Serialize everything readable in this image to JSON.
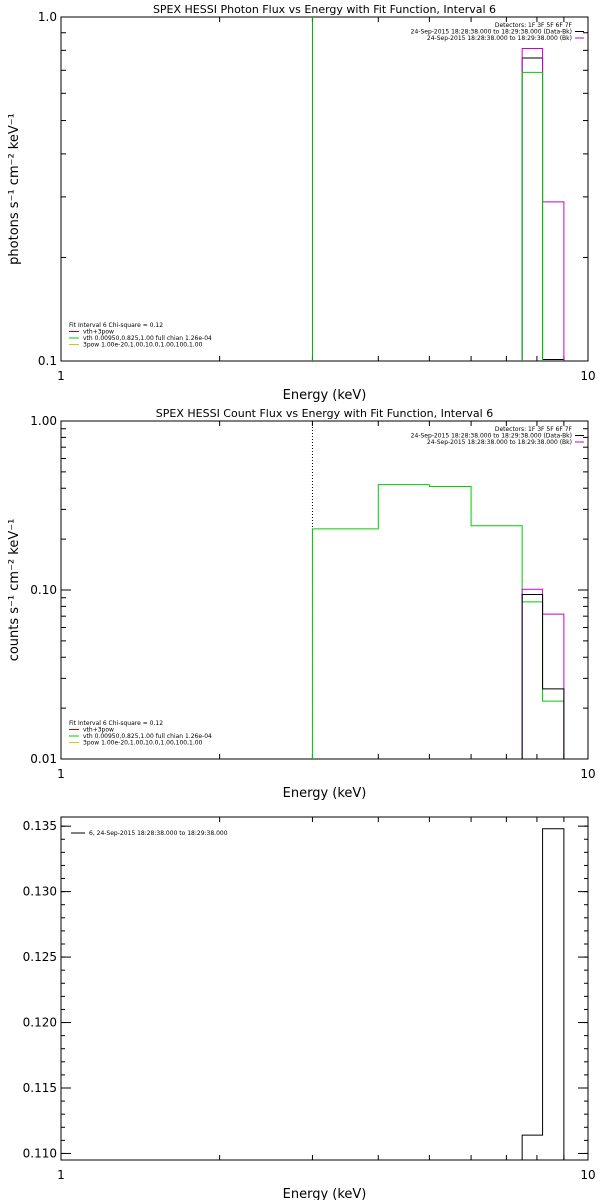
{
  "chart_data": [
    {
      "type": "line",
      "title": "SPEX HESSI Photon Flux vs Energy with Fit Function, Interval 6",
      "xlabel": "Energy (keV)",
      "ylabel": "photons s⁻¹ cm⁻² keV⁻¹",
      "xscale": "log",
      "yscale": "log",
      "xlim": [
        1,
        10
      ],
      "ylim": [
        0.1,
        1.0
      ],
      "xticks": [
        {
          "value": 1,
          "label": "1"
        },
        {
          "value": 10,
          "label": "10"
        }
      ],
      "yticks": [
        {
          "value": 0.1,
          "label": "0.1"
        },
        {
          "value": 1.0,
          "label": "1.0"
        }
      ],
      "minor_yticks": [
        0.2,
        0.3,
        0.4,
        0.5,
        0.6,
        0.7,
        0.8,
        0.9
      ],
      "grid": false,
      "legend_topright": [
        {
          "text": "Detectors: 1F 3F 5F 6F 7F",
          "color": "#000000"
        },
        {
          "text": "24-Sep-2015 18:28:38.000 to 18:29:38.000 (Data-Bk)",
          "color": "#000000"
        },
        {
          "text": "24-Sep-2015 18:28:38.000 to 18:29:38.000 (Bk)",
          "color": "#cc00cc"
        }
      ],
      "legend_bottomleft": [
        {
          "text": "Fit Interval 6   Chi-square = 0.12",
          "color": "#000000"
        },
        {
          "text": "vth+3pow",
          "color": "#cc0000"
        },
        {
          "text": "vth 0.00950,0.825,1.00  full chian 1.26e-04",
          "color": "#00cc00"
        },
        {
          "text": "3pow 1.00e-20,1.00,10.0,1.00,100,1.00",
          "color": "#cccc00"
        }
      ],
      "vlines": [
        {
          "x": 3.0,
          "color": "#00aa00",
          "style": "solid"
        }
      ],
      "series": [
        {
          "color": "#000000",
          "edges": [
            7.5,
            8.2,
            9.0
          ],
          "values": [
            0.76,
            0.101
          ]
        },
        {
          "color": "#cc00cc",
          "edges": [
            7.5,
            8.2,
            9.0
          ],
          "values": [
            0.81,
            0.29
          ]
        },
        {
          "color": "#00cc00",
          "edges": [
            7.5,
            8.2
          ],
          "values": [
            0.69
          ]
        }
      ]
    },
    {
      "type": "line",
      "title": "SPEX HESSI Count Flux vs Energy with Fit Function, Interval 6",
      "xlabel": "Energy (keV)",
      "ylabel": "counts s⁻¹ cm⁻² keV⁻¹",
      "xscale": "log",
      "yscale": "log",
      "xlim": [
        1,
        10
      ],
      "ylim": [
        0.01,
        1.0
      ],
      "xticks": [
        {
          "value": 1,
          "label": "1"
        },
        {
          "value": 10,
          "label": "10"
        }
      ],
      "yticks": [
        {
          "value": 0.01,
          "label": "0.01"
        },
        {
          "value": 0.1,
          "label": "0.10"
        },
        {
          "value": 1.0,
          "label": "1.00"
        }
      ],
      "minor_yticks": [
        0.02,
        0.03,
        0.04,
        0.05,
        0.06,
        0.07,
        0.08,
        0.09,
        0.2,
        0.3,
        0.4,
        0.5,
        0.6,
        0.7,
        0.8,
        0.9
      ],
      "grid": false,
      "legend_topright": [
        {
          "text": "Detectors: 1F 3F 5F 6F 7F",
          "color": "#000000"
        },
        {
          "text": "24-Sep-2015 18:28:38.000 to 18:29:38.000 (Data-Bk)",
          "color": "#000000"
        },
        {
          "text": "24-Sep-2015 18:28:38.000 to 18:29:38.000 (Bk)",
          "color": "#cc00cc"
        }
      ],
      "legend_bottomleft": [
        {
          "text": "Fit Interval 6   Chi-square = 0.12",
          "color": "#000000"
        },
        {
          "text": "vth+3pow",
          "color": "#cc0000"
        },
        {
          "text": "vth 0.00950,0.825,1.00  full chian 1.26e-04",
          "color": "#00cc00"
        },
        {
          "text": "3pow 1.00e-20,1.00,10.0,1.00,100,1.00",
          "color": "#cccc00"
        }
      ],
      "vlines": [
        {
          "x": 3.0,
          "color": "#000000",
          "style": "dotted"
        }
      ],
      "series": [
        {
          "color": "#00cc00",
          "edges": [
            3.0,
            4.0,
            5.0,
            6.0,
            7.5,
            8.2,
            9.0
          ],
          "values": [
            0.23,
            0.42,
            0.41,
            0.24,
            0.085,
            0.022
          ]
        },
        {
          "color": "#cc00cc",
          "edges": [
            7.5,
            8.2,
            9.0
          ],
          "values": [
            0.101,
            0.072
          ]
        },
        {
          "color": "#000000",
          "edges": [
            7.5,
            8.2,
            9.0
          ],
          "values": [
            0.094,
            0.026
          ]
        }
      ]
    },
    {
      "type": "line",
      "title": "",
      "xlabel": "Energy (keV)",
      "ylabel": "",
      "xscale": "log",
      "yscale": "linear",
      "xlim": [
        1,
        10
      ],
      "ylim": [
        0.1095,
        0.1357
      ],
      "xticks": [
        {
          "value": 1,
          "label": "1"
        },
        {
          "value": 10,
          "label": "10"
        }
      ],
      "yticks": [
        {
          "value": 0.11,
          "label": "0.110"
        },
        {
          "value": 0.115,
          "label": "0.115"
        },
        {
          "value": 0.12,
          "label": "0.120"
        },
        {
          "value": 0.125,
          "label": "0.125"
        },
        {
          "value": 0.13,
          "label": "0.130"
        },
        {
          "value": 0.135,
          "label": "0.135"
        }
      ],
      "minor_yticks": [],
      "grid": false,
      "legend_topleft": [
        {
          "text": "6, 24-Sep-2015 18:28:38.000 to 18:29:38.000",
          "color": "#000000"
        }
      ],
      "vlines": [],
      "series": [
        {
          "color": "#000000",
          "edges": [
            7.5,
            8.2,
            9.0
          ],
          "values": [
            0.1114,
            0.1348
          ]
        }
      ]
    }
  ]
}
